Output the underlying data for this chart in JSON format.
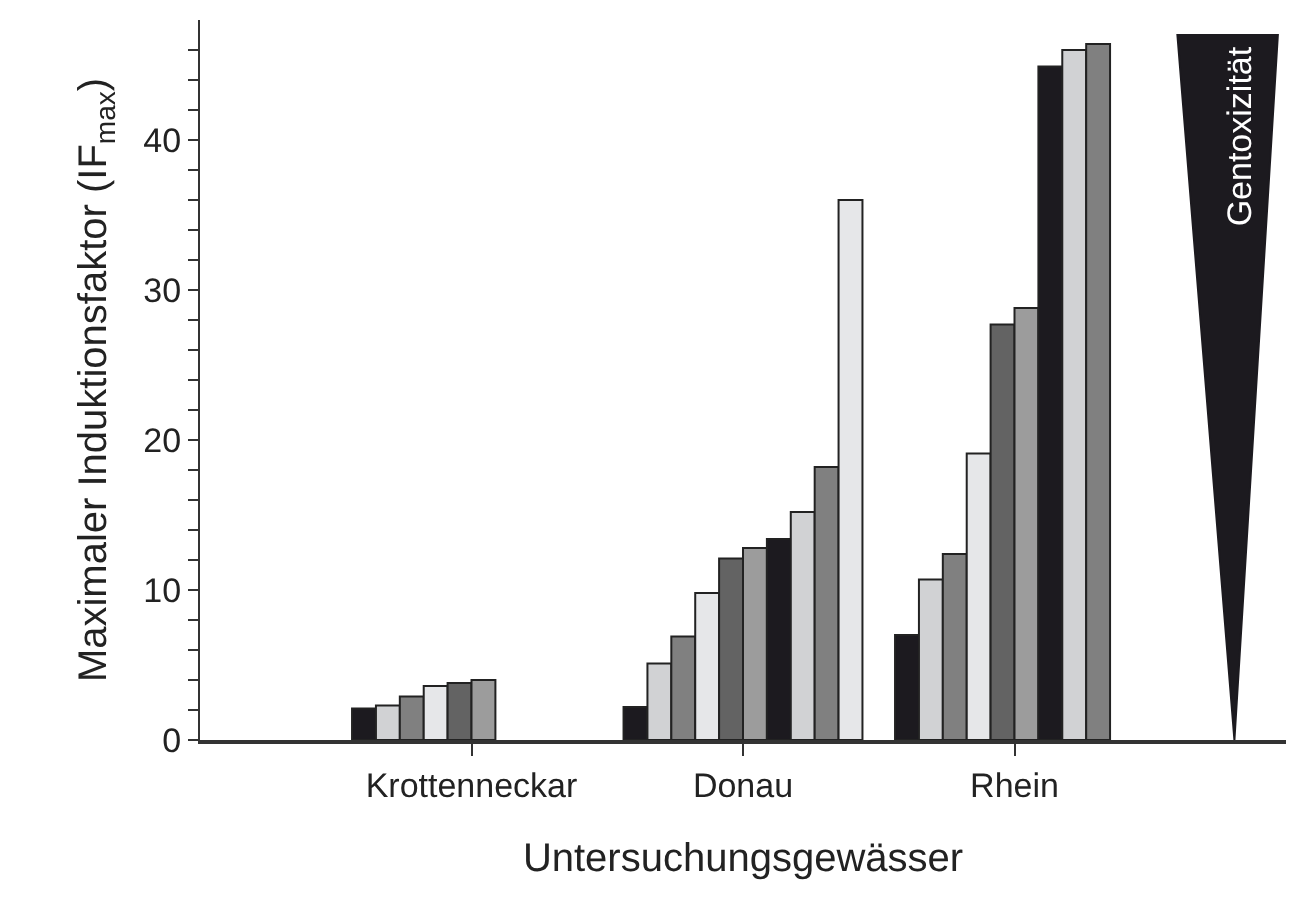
{
  "chart_data": {
    "type": "bar",
    "xlabel": "Untersuchungsgewässer",
    "ylabel": "Maximaler Induktionsfaktor (IF$_{max}$)",
    "categories": [
      "Krottenneckar",
      "Donau",
      "Rhein"
    ],
    "series": [
      {
        "color": "#1c1a1f",
        "values": [
          2.1,
          2.2,
          7.0
        ]
      },
      {
        "color": "#d1d2d4",
        "values": [
          2.3,
          5.1,
          10.7
        ]
      },
      {
        "color": "#808080",
        "values": [
          2.9,
          6.9,
          12.4
        ]
      },
      {
        "color": "#e6e7e9",
        "values": [
          3.6,
          9.8,
          19.1
        ]
      },
      {
        "color": "#636363",
        "values": [
          3.8,
          12.1,
          27.7
        ]
      },
      {
        "color": "#9c9c9c",
        "values": [
          4.0,
          12.8,
          28.8
        ]
      },
      {
        "color": "#1c1a1f",
        "values": [
          null,
          13.4,
          44.9
        ]
      },
      {
        "color": "#d1d2d4",
        "values": [
          null,
          15.2,
          46.0
        ]
      },
      {
        "color": "#808080",
        "values": [
          null,
          18.2,
          46.4
        ]
      },
      {
        "color": "#e6e7e9",
        "values": [
          null,
          36.0,
          null
        ]
      }
    ],
    "ylim": [
      0,
      48
    ],
    "yticks": [
      0,
      {
        "value": 2,
        "label": null
      },
      {
        "value": 4,
        "label": null
      },
      {
        "value": 6,
        "label": null
      },
      {
        "value": 8,
        "label": null
      },
      10,
      {
        "value": 12,
        "label": null
      },
      {
        "value": 14,
        "label": null
      },
      {
        "value": 16,
        "label": null
      },
      {
        "value": 18,
        "label": null
      },
      20,
      {
        "value": 22,
        "label": null
      },
      {
        "value": 24,
        "label": null
      },
      {
        "value": 26,
        "label": null
      },
      {
        "value": 28,
        "label": null
      },
      30,
      {
        "value": 32,
        "label": null
      },
      {
        "value": 34,
        "label": null
      },
      {
        "value": 36,
        "label": null
      },
      {
        "value": 38,
        "label": null
      },
      40,
      {
        "value": 42,
        "label": null
      },
      {
        "value": 44,
        "label": null
      },
      {
        "value": 46,
        "label": null
      }
    ],
    "annotations": [
      "Gentoxizität"
    ]
  }
}
